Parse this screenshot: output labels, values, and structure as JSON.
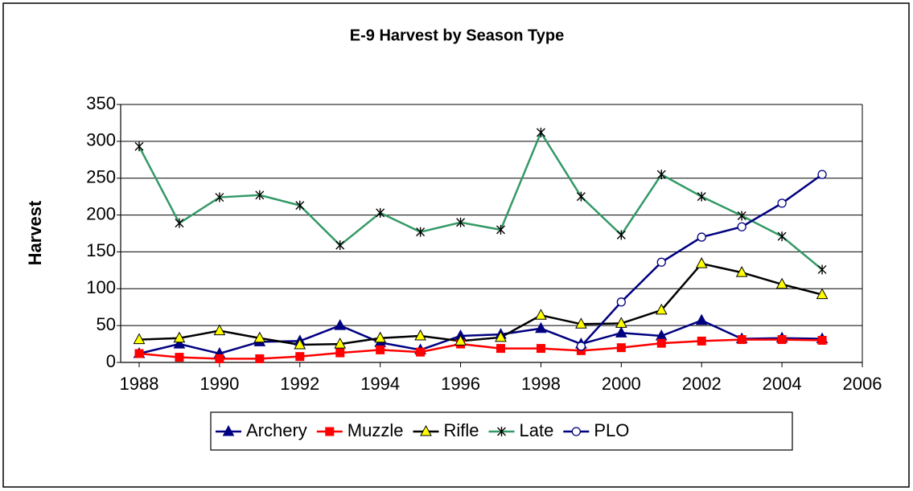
{
  "chart_data": {
    "type": "line",
    "title": "E-9 Harvest by Season Type",
    "y_label": "Harvest",
    "x": [
      1988,
      1989,
      1990,
      1991,
      1992,
      1993,
      1994,
      1995,
      1996,
      1997,
      1998,
      1999,
      2000,
      2001,
      2002,
      2003,
      2004,
      2005
    ],
    "xlim": [
      1988,
      2006
    ],
    "xticks": [
      1988,
      1990,
      1992,
      1994,
      1996,
      1998,
      2000,
      2002,
      2004,
      2006
    ],
    "ylim": [
      0,
      350
    ],
    "yticks": [
      0,
      50,
      100,
      150,
      200,
      250,
      300,
      350
    ],
    "grid": true,
    "legend": "bottom",
    "series": [
      {
        "name": "Archery",
        "color": "#000080",
        "marker": "triangle",
        "marker_fill": "#000080",
        "values": [
          12,
          25,
          12,
          28,
          29,
          50,
          27,
          17,
          36,
          38,
          46,
          25,
          40,
          36,
          57,
          32,
          33,
          32
        ]
      },
      {
        "name": "Muzzle",
        "color": "#ff0000",
        "marker": "square",
        "marker_fill": "#ff0000",
        "values": [
          12,
          7,
          5,
          5,
          8,
          13,
          17,
          14,
          25,
          19,
          19,
          16,
          20,
          26,
          29,
          31,
          31,
          30
        ]
      },
      {
        "name": "Rifle",
        "color": "#000000",
        "marker": "triangle",
        "marker_fill": "#ffff00",
        "values": [
          31,
          33,
          43,
          33,
          24,
          25,
          33,
          36,
          29,
          34,
          64,
          52,
          53,
          71,
          134,
          122,
          106,
          92
        ]
      },
      {
        "name": "Late",
        "color": "#339966",
        "marker": "star",
        "marker_fill": "#000000",
        "values": [
          293,
          189,
          224,
          227,
          213,
          159,
          203,
          177,
          190,
          180,
          312,
          225,
          173,
          255,
          225,
          199,
          171,
          126
        ]
      },
      {
        "name": "PLO",
        "color": "#000080",
        "marker": "circle",
        "marker_fill": "#ffffff",
        "values": [
          null,
          null,
          null,
          null,
          null,
          null,
          null,
          null,
          null,
          null,
          null,
          22,
          82,
          136,
          170,
          184,
          216,
          255
        ]
      }
    ]
  }
}
